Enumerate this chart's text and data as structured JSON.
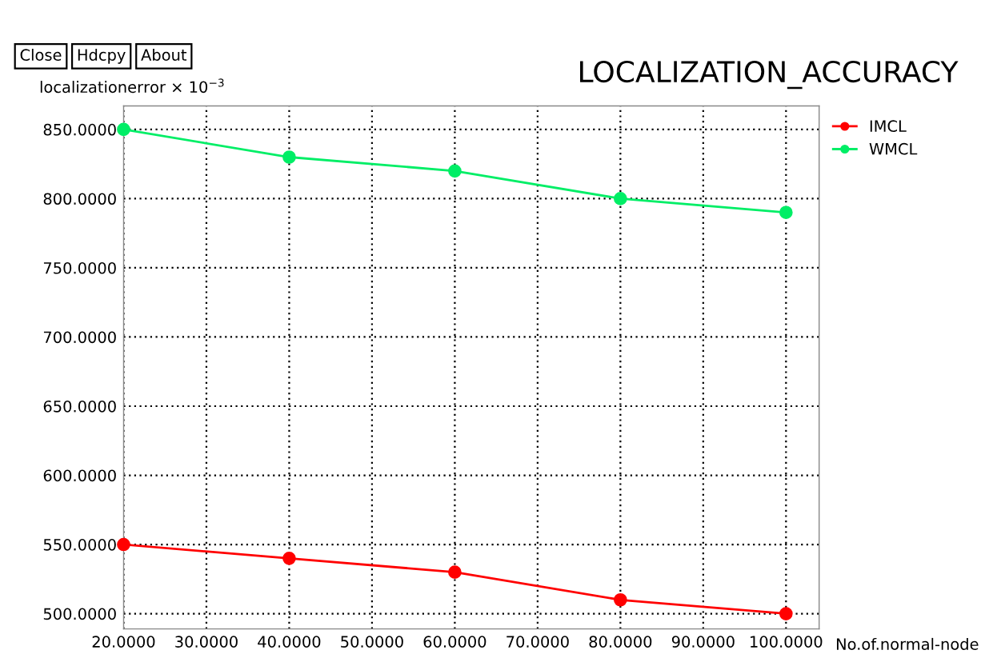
{
  "chart_data": {
    "type": "line",
    "title": "LOCALIZATION_ACCURACY",
    "xlabel": "No.of.normal-node",
    "ylabel": "localizationerror × 10$^{−3}$",
    "annotations": [
      "Close",
      "Hdcpy",
      "About"
    ],
    "x": [
      20,
      40,
      60,
      80,
      100
    ],
    "series": [
      {
        "name": "IMCL",
        "color": "#ff0000",
        "values": [
          550,
          540,
          530,
          510,
          500
        ]
      },
      {
        "name": "WMCL",
        "color": "#00ee66",
        "values": [
          850,
          830,
          820,
          800,
          790
        ]
      }
    ],
    "xlim": [
      20,
      104
    ],
    "ylim": [
      489,
      867
    ],
    "xticks": [
      {
        "value": 20,
        "label": "20.0000"
      },
      {
        "value": 30,
        "label": "30.0000"
      },
      {
        "value": 40,
        "label": "40.0000"
      },
      {
        "value": 50,
        "label": "50.0000"
      },
      {
        "value": 60,
        "label": "60.0000"
      },
      {
        "value": 70,
        "label": "70.0000"
      },
      {
        "value": 80,
        "label": "80.0000"
      },
      {
        "value": 90,
        "label": "90.0000"
      },
      {
        "value": 100,
        "label": "100.0000"
      }
    ],
    "yticks": [
      {
        "value": 500,
        "label": "500.0000"
      },
      {
        "value": 550,
        "label": "550.0000"
      },
      {
        "value": 600,
        "label": "600.0000"
      },
      {
        "value": 650,
        "label": "650.0000"
      },
      {
        "value": 700,
        "label": "700.0000"
      },
      {
        "value": 750,
        "label": "750.0000"
      },
      {
        "value": 800,
        "label": "800.0000"
      },
      {
        "value": 850,
        "label": "850.0000"
      }
    ],
    "grid": true,
    "legend": "top right",
    "marker": "circle",
    "line_style": "solid"
  }
}
